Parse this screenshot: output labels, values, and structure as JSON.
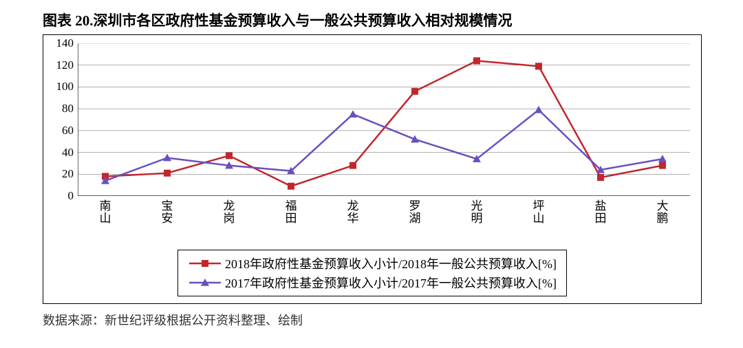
{
  "title_text": "图表 20.深圳市各区政府性基金预算收入与一般公共预算收入相对规模情况",
  "title_fontsize": 21,
  "source_text": "数据来源：新世纪评级根据公开资料整理、绘制",
  "source_fontsize": 18,
  "chart": {
    "type": "line",
    "categories": [
      "南山",
      "宝安",
      "龙岗",
      "福田",
      "龙华",
      "罗湖",
      "光明",
      "坪山",
      "盐田",
      "大鹏"
    ],
    "series": [
      {
        "name": "2018年政府性基金预算收入小计/2018年一般公共预算收入[%]",
        "values": [
          18,
          21,
          37,
          9,
          28,
          96,
          124,
          119,
          17,
          28
        ],
        "color": "#c0272d",
        "marker": "square",
        "marker_size": 10,
        "line_width": 2.5
      },
      {
        "name": "2017年政府性基金预算收入小计/2017年一般公共预算收入[%]",
        "values": [
          14,
          35,
          28,
          23,
          75,
          52,
          34,
          79,
          24,
          34
        ],
        "color": "#6a4fbf",
        "marker": "triangle",
        "marker_size": 12,
        "line_width": 2.5
      }
    ],
    "ylim": [
      0,
      140
    ],
    "ytick_step": 20,
    "yticks": [
      0,
      20,
      40,
      60,
      80,
      100,
      120,
      140
    ],
    "grid_color": "#808080",
    "grid_width": 0.6,
    "axis_color": "#000000",
    "tick_fontsize": 17,
    "legend_fontsize": 18,
    "background_color": "#ffffff",
    "border_color": "#000000",
    "x_label_vertical": true
  }
}
